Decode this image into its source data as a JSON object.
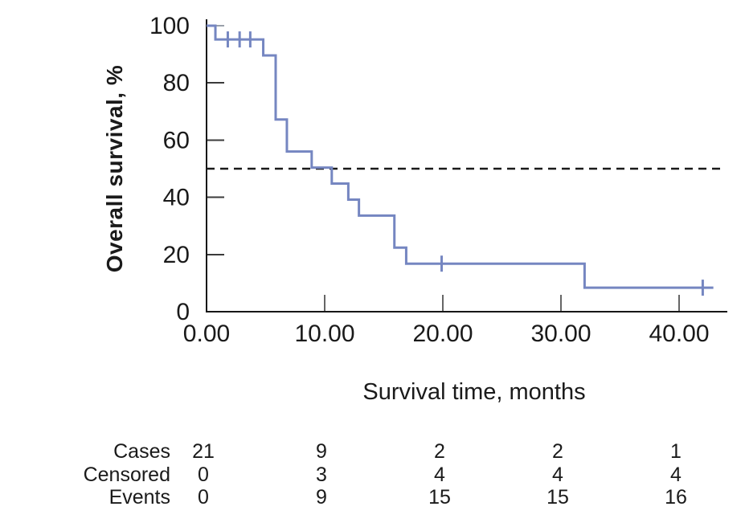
{
  "chart_data": {
    "type": "line",
    "subtype": "kaplan-meier-step-curve",
    "title": "",
    "xlabel": "Survival time, months",
    "ylabel": "Overall survival, %",
    "xlim": [
      0,
      44
    ],
    "ylim": [
      0,
      100
    ],
    "grid": "off",
    "legend": "none",
    "x_ticks": [
      {
        "value": 0,
        "label": "0.00"
      },
      {
        "value": 10,
        "label": "10.00"
      },
      {
        "value": 20,
        "label": "20.00"
      },
      {
        "value": 30,
        "label": "30.00"
      },
      {
        "value": 40,
        "label": "40.00"
      }
    ],
    "y_ticks": [
      {
        "value": 0,
        "label": "0"
      },
      {
        "value": 20,
        "label": "20"
      },
      {
        "value": 40,
        "label": "40"
      },
      {
        "value": 60,
        "label": "60"
      },
      {
        "value": 80,
        "label": "80"
      },
      {
        "value": 100,
        "label": "100"
      }
    ],
    "median_line": {
      "value": 50,
      "style": "dashed",
      "color": "#1a1a1a"
    },
    "series": [
      {
        "name": "Overall survival",
        "color": "#7586c1",
        "start": [
          0,
          100
        ],
        "drops": [
          [
            0.75,
            95.2
          ],
          [
            4.8,
            89.6
          ],
          [
            5.85,
            67.2
          ],
          [
            6.8,
            56.0
          ],
          [
            8.9,
            50.4
          ],
          [
            10.6,
            44.8
          ],
          [
            12.0,
            39.2
          ],
          [
            12.9,
            33.6
          ],
          [
            15.9,
            22.4
          ],
          [
            16.9,
            16.8
          ],
          [
            32.0,
            8.4
          ]
        ],
        "end_x": 42.9,
        "censor_marks": [
          [
            1.8,
            95.2
          ],
          [
            2.8,
            95.2
          ],
          [
            3.7,
            95.2
          ],
          [
            19.9,
            16.8
          ],
          [
            42.0,
            8.4
          ]
        ]
      }
    ],
    "risk_table": {
      "times": [
        0,
        10,
        20,
        30,
        40
      ],
      "rows": [
        {
          "label": "Cases",
          "values": [
            "21",
            "9",
            "2",
            "2",
            "1"
          ]
        },
        {
          "label": "Censored",
          "values": [
            "0",
            "3",
            "4",
            "4",
            "4"
          ]
        },
        {
          "label": "Events",
          "values": [
            "0",
            "9",
            "15",
            "15",
            "16"
          ]
        }
      ]
    },
    "colors": {
      "curve": "#7586c1",
      "axis": "#161616",
      "tick": "#3b3b3b",
      "tick_muted": "#9aa1aa",
      "text": "#1a1a1a"
    }
  }
}
